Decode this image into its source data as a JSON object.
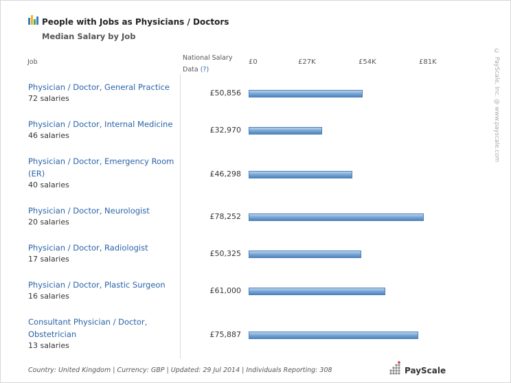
{
  "header": {
    "title": "People with Jobs as Physicians / Doctors",
    "subtitle": "Median Salary by Job"
  },
  "columns": {
    "job": "Job",
    "national_line1": "National Salary",
    "national_line2": "Data",
    "help": "(?)"
  },
  "chart_data": {
    "type": "bar",
    "orientation": "horizontal",
    "title": "People with Jobs as Physicians / Doctors",
    "subtitle": "Median Salary by Job",
    "xlabel": "",
    "ylabel": "",
    "xlim": [
      0,
      81000
    ],
    "ticks": [
      {
        "value": 0,
        "label": "£0"
      },
      {
        "value": 27000,
        "label": "£27K"
      },
      {
        "value": 54000,
        "label": "£54K"
      },
      {
        "value": 81000,
        "label": "£81K"
      }
    ],
    "categories": [
      "Physician / Doctor, General Practice",
      "Physician / Doctor, Internal Medicine",
      "Physician / Doctor, Emergency Room (ER)",
      "Physician / Doctor, Neurologist",
      "Physician / Doctor, Radiologist",
      "Physician / Doctor, Plastic Surgeon",
      "Consultant Physician / Doctor, Obstetrician"
    ],
    "values": [
      50856,
      32970,
      46298,
      78252,
      50325,
      61000,
      75887
    ],
    "value_labels": [
      "£50,856",
      "£32,970",
      "£46,298",
      "£78,252",
      "£50,325",
      "£61,000",
      "£75,887"
    ],
    "counts": [
      "72 salaries",
      "46 salaries",
      "40 salaries",
      "20 salaries",
      "17 salaries",
      "16 salaries",
      "13 salaries"
    ],
    "bar_color": "#6b9bd0",
    "grid": false,
    "legend": "none"
  },
  "copyright": "© PayScale, Inc. @ www.payscale.com",
  "footer": "Country: United Kingdom | Currency: GBP | Updated: 29 Jul 2014 | Individuals Reporting: 308",
  "logo": {
    "text": "PayScale",
    "icon": "payscale-logo-icon",
    "accent": "#d0313a"
  }
}
